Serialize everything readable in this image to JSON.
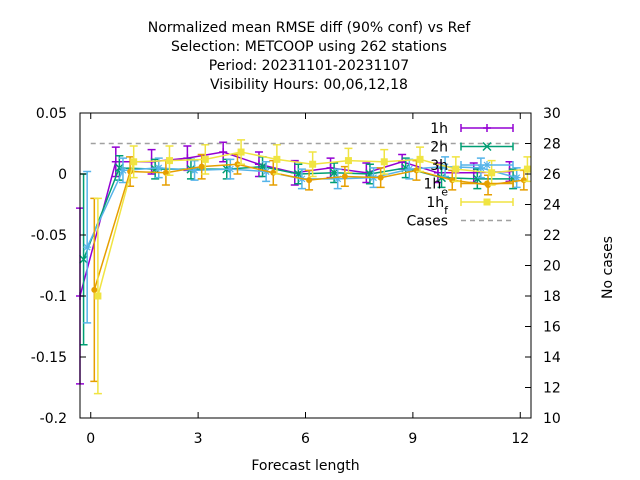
{
  "chart_data": {
    "type": "line",
    "title_lines": [
      "Normalized mean RMSE diff (90% conf) vs Ref",
      "Selection: METCOOP using   262 stations",
      "Period: 20231101-20231107",
      "Visibility   Hours:  00,06,12,18"
    ],
    "xlabel": "Forecast length",
    "ylabel": "",
    "y2label": "No cases",
    "xlim": [
      -0.3,
      12.3
    ],
    "ylim": [
      -0.2,
      0.05
    ],
    "y2lim": [
      10,
      30
    ],
    "x_ticks": [
      0,
      3,
      6,
      9,
      12
    ],
    "x_tick_labels": [
      "0",
      "3",
      "6",
      "9",
      "12"
    ],
    "y_ticks": [
      0.05,
      0,
      -0.05,
      -0.1,
      -0.15,
      -0.2
    ],
    "y_tick_labels": [
      "0.05",
      "0",
      "-0.05",
      "-0.1",
      "-0.15",
      "-0.2"
    ],
    "y2_ticks": [
      30,
      28,
      26,
      24,
      22,
      20,
      18,
      16,
      14,
      12,
      10
    ],
    "y2_tick_labels": [
      "30",
      "28",
      "26",
      "24",
      "22",
      "20",
      "18",
      "16",
      "14",
      "12",
      "10"
    ],
    "grid": false,
    "legend_position": "top-right",
    "series": [
      {
        "name": "1h",
        "color": "#9400d3",
        "marker": "plus",
        "x": [
          -0.3,
          0.7,
          1.7,
          2.7,
          3.7,
          4.7,
          5.7,
          6.7,
          7.7,
          8.7,
          9.7,
          10.7,
          11.7
        ],
        "y": [
          -0.1,
          0.01,
          0.01,
          0.013,
          0.018,
          0.008,
          0.001,
          0.005,
          0.001,
          0.01,
          0.001,
          0.001,
          0.002
        ],
        "err": [
          0.072,
          0.012,
          0.01,
          0.01,
          0.008,
          0.01,
          0.01,
          0.008,
          0.008,
          0.006,
          0.008,
          0.008,
          0.008
        ]
      },
      {
        "name": "2h",
        "color": "#009e73",
        "marker": "x",
        "x": [
          -0.2,
          0.8,
          1.8,
          2.8,
          3.8,
          4.8,
          5.8,
          6.8,
          7.8,
          8.8,
          9.8,
          10.8,
          11.8
        ],
        "y": [
          -0.07,
          0.005,
          0.004,
          0.004,
          0.004,
          0.006,
          0.0,
          0.001,
          0.0,
          0.005,
          -0.003,
          -0.004,
          -0.004
        ],
        "err": [
          0.07,
          0.01,
          0.008,
          0.008,
          0.008,
          0.008,
          0.008,
          0.008,
          0.008,
          0.008,
          0.008,
          0.008,
          0.008
        ]
      },
      {
        "name": "3h",
        "color": "#56b4e9",
        "marker": "star",
        "x": [
          -0.1,
          0.9,
          1.9,
          2.9,
          3.9,
          4.9,
          5.9,
          6.9,
          7.9,
          8.9,
          9.9,
          10.9,
          11.9
        ],
        "y": [
          -0.06,
          0.003,
          0.005,
          0.003,
          0.004,
          0.002,
          -0.004,
          -0.004,
          -0.003,
          0.004,
          0.006,
          0.005,
          -0.003
        ],
        "err": [
          0.062,
          0.01,
          0.008,
          0.008,
          0.008,
          0.008,
          0.008,
          0.008,
          0.008,
          0.008,
          0.008,
          0.008,
          0.008
        ]
      },
      {
        "name": "1h_e",
        "color": "#e69f00",
        "marker": "circle",
        "x": [
          0.1,
          1.1,
          2.1,
          3.1,
          4.1,
          5.1,
          6.1,
          7.1,
          8.1,
          9.1,
          10.1,
          11.1,
          12.1
        ],
        "y": [
          -0.095,
          0.002,
          0.001,
          0.006,
          0.008,
          0.001,
          -0.005,
          -0.002,
          -0.003,
          0.003,
          -0.005,
          -0.009,
          -0.005
        ],
        "err": [
          0.075,
          0.012,
          0.01,
          0.01,
          0.008,
          0.01,
          0.008,
          0.008,
          0.008,
          0.008,
          0.008,
          0.008,
          0.008
        ]
      },
      {
        "name": "1h_f",
        "color": "#f0e442",
        "marker": "square",
        "x": [
          0.2,
          1.2,
          2.2,
          3.2,
          4.2,
          5.2,
          6.2,
          7.2,
          8.2,
          9.2,
          10.2,
          11.2,
          12.2
        ],
        "y": [
          -0.1,
          0.01,
          0.011,
          0.012,
          0.018,
          0.012,
          0.008,
          0.011,
          0.01,
          0.012,
          0.004,
          0.001,
          0.004
        ],
        "err": [
          0.08,
          0.013,
          0.012,
          0.012,
          0.01,
          0.012,
          0.01,
          0.01,
          0.01,
          0.01,
          0.01,
          0.01,
          0.01
        ]
      }
    ],
    "cases": {
      "name": "Cases",
      "color": "#a0a0a0",
      "x": [
        0,
        12
      ],
      "y": [
        28,
        28
      ]
    }
  }
}
